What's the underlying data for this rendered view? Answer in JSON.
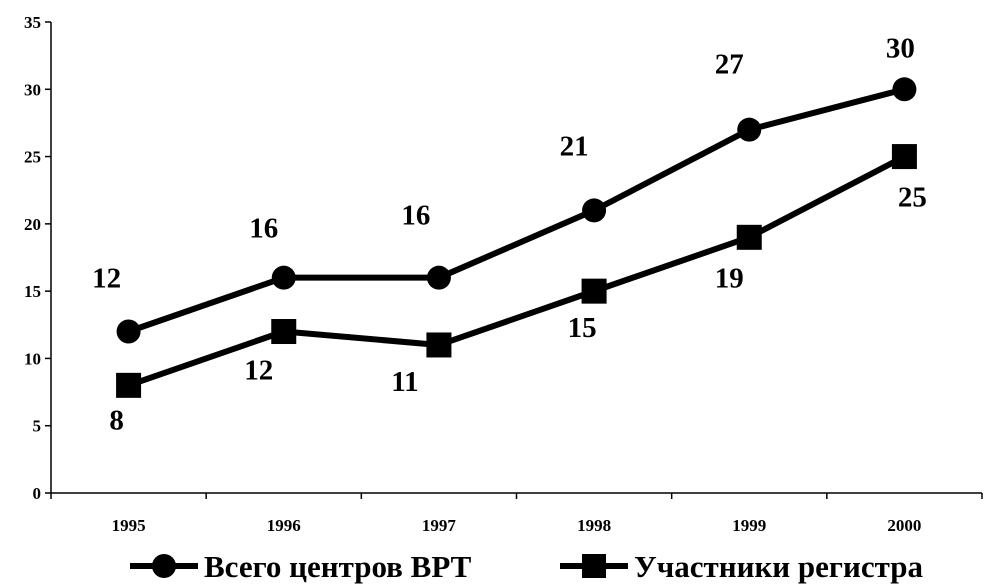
{
  "chart_data": {
    "type": "line",
    "categories": [
      "1995",
      "1996",
      "1997",
      "1998",
      "1999",
      "2000"
    ],
    "ylim": [
      0,
      35
    ],
    "yticks": [
      0,
      5,
      10,
      15,
      20,
      25,
      30,
      35
    ],
    "grid": false,
    "legend_position": "bottom",
    "series": [
      {
        "name": "Всего центров ВРТ",
        "marker": "circle",
        "color": "#000000",
        "values": [
          12,
          16,
          16,
          21,
          27,
          30
        ],
        "labels": [
          "12",
          "16",
          "16",
          "21",
          "27",
          "30"
        ]
      },
      {
        "name": "Участники регистра",
        "marker": "square",
        "color": "#000000",
        "values": [
          8,
          12,
          11,
          15,
          19,
          25
        ],
        "labels": [
          "8",
          "12",
          "11",
          "15",
          "19",
          "25"
        ]
      }
    ]
  }
}
